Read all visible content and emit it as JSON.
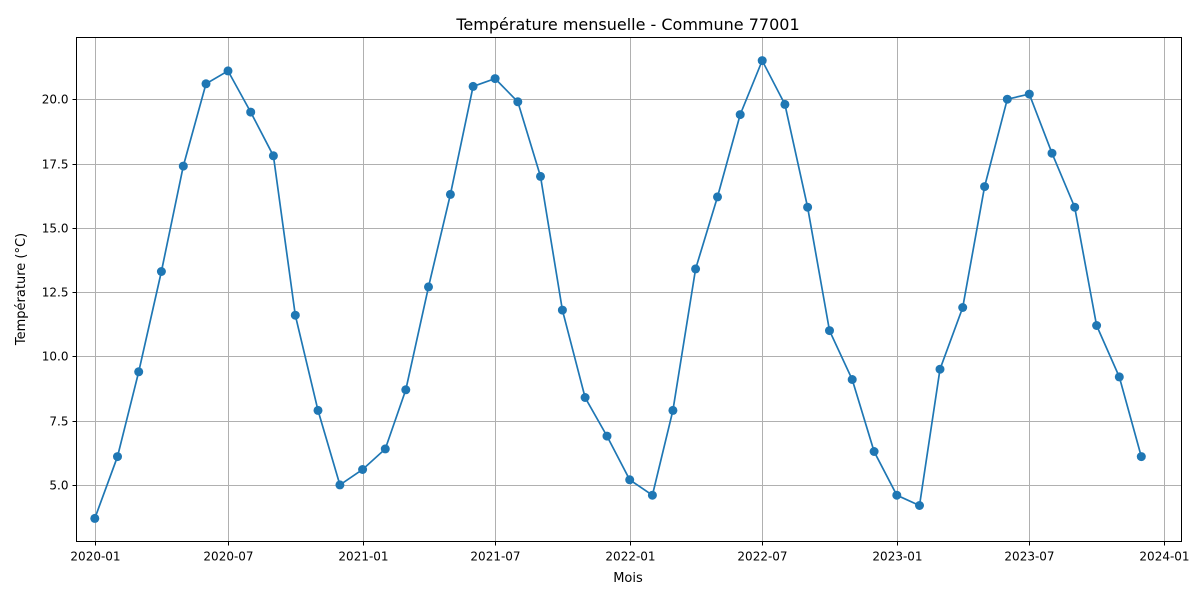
{
  "chart_data": {
    "type": "line",
    "title": "Température mensuelle - Commune 77001",
    "xlabel": "Mois",
    "ylabel": "Température (°C)",
    "color": "#1f77b4",
    "grid": true,
    "x": [
      "2020-01",
      "2020-02",
      "2020-03",
      "2020-04",
      "2020-05",
      "2020-06",
      "2020-07",
      "2020-08",
      "2020-09",
      "2020-10",
      "2020-11",
      "2020-12",
      "2021-01",
      "2021-02",
      "2021-03",
      "2021-04",
      "2021-05",
      "2021-06",
      "2021-07",
      "2021-08",
      "2021-09",
      "2021-10",
      "2021-11",
      "2021-12",
      "2022-01",
      "2022-02",
      "2022-03",
      "2022-04",
      "2022-05",
      "2022-06",
      "2022-07",
      "2022-08",
      "2022-09",
      "2022-10",
      "2022-11",
      "2022-12",
      "2023-01",
      "2023-02",
      "2023-03",
      "2023-04",
      "2023-05",
      "2023-06",
      "2023-07",
      "2023-08",
      "2023-09",
      "2023-10",
      "2023-11",
      "2023-12"
    ],
    "values": [
      3.7,
      6.1,
      9.4,
      13.3,
      17.4,
      20.6,
      21.1,
      19.5,
      17.8,
      11.6,
      7.9,
      5.0,
      5.6,
      6.4,
      8.7,
      12.7,
      16.3,
      20.5,
      20.8,
      19.9,
      17.0,
      11.8,
      8.4,
      6.9,
      5.2,
      4.6,
      7.9,
      13.4,
      16.2,
      19.4,
      21.5,
      19.8,
      15.8,
      11.0,
      9.1,
      6.3,
      4.6,
      4.2,
      9.5,
      11.9,
      16.6,
      20.0,
      20.2,
      17.9,
      15.8,
      11.2,
      9.2,
      6.1
    ],
    "xticks": [
      "2020-01",
      "2020-07",
      "2021-01",
      "2021-07",
      "2022-01",
      "2022-07",
      "2023-01",
      "2023-07",
      "2024-01"
    ],
    "yticks": [
      5.0,
      7.5,
      10.0,
      12.5,
      15.0,
      17.5,
      20.0
    ],
    "ytick_labels": [
      "5.0",
      "7.5",
      "10.0",
      "12.5",
      "15.0",
      "17.5",
      "20.0"
    ],
    "xlim": [
      "2019-12-07",
      "2024-01-25"
    ],
    "ylim": [
      2.8,
      22.4
    ]
  }
}
